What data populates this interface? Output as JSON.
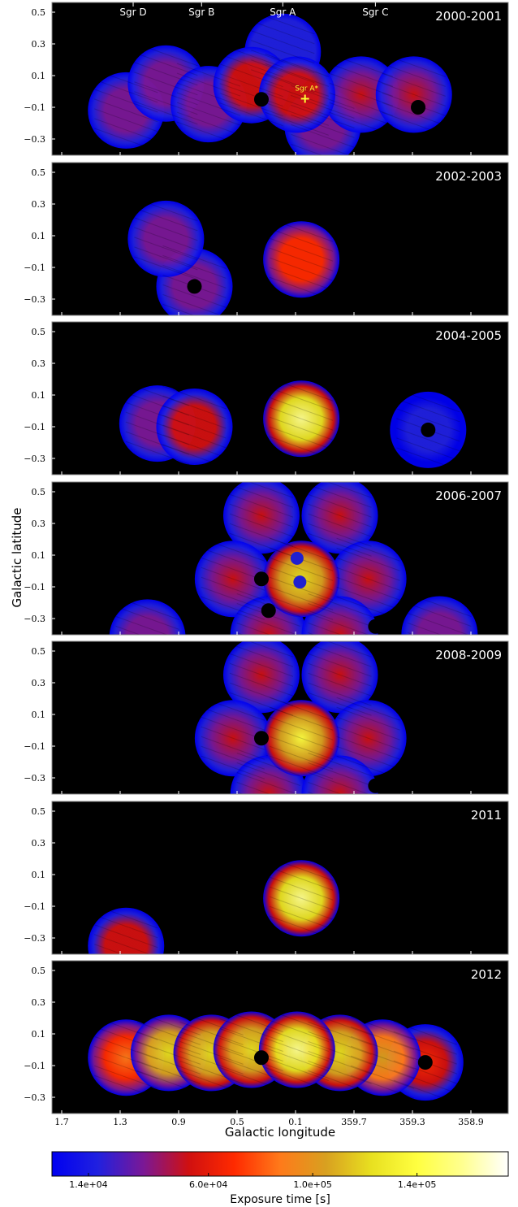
{
  "chart_data": {
    "type": "heatmap",
    "xlabel": "Galactic longitude",
    "ylabel": "Galactic latitude",
    "x_ticks": [
      "1.7",
      "1.3",
      "0.9",
      "0.5",
      "0.1",
      "359.7",
      "359.3",
      "358.9"
    ],
    "y_ticks": [
      "0.5",
      "0.3",
      "0.1",
      "−0.1",
      "−0.3"
    ],
    "xlim": [
      1.7,
      358.7
    ],
    "ylim": [
      -0.5,
      0.55
    ],
    "region_labels": [
      {
        "name": "Sgr D",
        "l": 1.15
      },
      {
        "name": "Sgr B",
        "l": 0.67
      },
      {
        "name": "Sgr A",
        "l": 0.1
      },
      {
        "name": "Sgr C",
        "l": -0.55
      }
    ],
    "source_marker": {
      "name": "Sgr A*",
      "l": -0.056,
      "b": -0.046
    },
    "panels": [
      {
        "year": "2000-2001",
        "pointings": [
          {
            "l": 0.1,
            "b": 0.25,
            "level": 0.15
          },
          {
            "l": 1.2,
            "b": -0.12,
            "level": 0.2
          },
          {
            "l": 0.92,
            "b": 0.05,
            "level": 0.2
          },
          {
            "l": 0.62,
            "b": -0.08,
            "level": 0.2
          },
          {
            "l": 0.32,
            "b": 0.04,
            "level": 0.32
          },
          {
            "l": 0.0,
            "b": -0.02,
            "level": 0.35
          },
          {
            "l": -0.18,
            "b": -0.22,
            "level": 0.25
          },
          {
            "l": -0.45,
            "b": -0.02,
            "level": 0.3
          },
          {
            "l": -0.82,
            "b": -0.02,
            "level": 0.3
          }
        ],
        "holes": [
          {
            "l": 0.25,
            "b": -0.05
          },
          {
            "l": 0.2,
            "b": -0.25
          },
          {
            "l": -0.85,
            "b": -0.1
          }
        ]
      },
      {
        "year": "2002-2003",
        "pointings": [
          {
            "l": 0.92,
            "b": 0.08,
            "level": 0.22
          },
          {
            "l": 0.72,
            "b": -0.22,
            "level": 0.2
          },
          {
            "l": -0.03,
            "b": -0.05,
            "level": 0.45
          }
        ],
        "holes": [
          {
            "l": 0.72,
            "b": -0.22
          }
        ]
      },
      {
        "year": "2004-2005",
        "pointings": [
          {
            "l": 0.98,
            "b": -0.08,
            "level": 0.22
          },
          {
            "l": 0.72,
            "b": -0.1,
            "level": 0.34
          },
          {
            "l": -0.03,
            "b": -0.05,
            "level": 0.9
          },
          {
            "l": -0.92,
            "b": -0.12,
            "level": 0.1
          }
        ],
        "holes": [
          {
            "l": -0.92,
            "b": -0.12
          }
        ]
      },
      {
        "year": "2006-2007",
        "pointings": [
          {
            "l": -0.03,
            "b": -0.05,
            "level": 0.72
          },
          {
            "l": 0.25,
            "b": 0.35,
            "level": 0.28
          },
          {
            "l": -0.3,
            "b": 0.35,
            "level": 0.28
          },
          {
            "l": 0.45,
            "b": -0.05,
            "level": 0.28
          },
          {
            "l": -0.5,
            "b": -0.05,
            "level": 0.28
          },
          {
            "l": 0.2,
            "b": -0.4,
            "level": 0.28
          },
          {
            "l": -0.3,
            "b": -0.4,
            "level": 0.28
          },
          {
            "l": 1.05,
            "b": -0.42,
            "level": 0.24
          },
          {
            "l": -1.0,
            "b": -0.4,
            "level": 0.24
          }
        ],
        "holes": [
          {
            "l": 0.25,
            "b": -0.05
          },
          {
            "l": 0.2,
            "b": -0.25
          },
          {
            "l": -0.55,
            "b": -0.35
          },
          {
            "l": 1.05,
            "b": -0.48
          }
        ],
        "blue_spots": [
          {
            "l": 0.0,
            "b": 0.08
          },
          {
            "l": -0.02,
            "b": -0.07
          }
        ]
      },
      {
        "year": "2008-2009",
        "pointings": [
          {
            "l": -0.03,
            "b": -0.05,
            "level": 0.8
          },
          {
            "l": 0.25,
            "b": 0.35,
            "level": 0.28
          },
          {
            "l": -0.3,
            "b": 0.35,
            "level": 0.28
          },
          {
            "l": 0.45,
            "b": -0.05,
            "level": 0.28
          },
          {
            "l": -0.5,
            "b": -0.05,
            "level": 0.28
          },
          {
            "l": 0.2,
            "b": -0.4,
            "level": 0.28
          },
          {
            "l": -0.3,
            "b": -0.4,
            "level": 0.28
          }
        ],
        "holes": [
          {
            "l": 0.25,
            "b": -0.05
          },
          {
            "l": -0.55,
            "b": -0.35
          }
        ]
      },
      {
        "year": "2011",
        "pointings": [
          {
            "l": -0.03,
            "b": -0.05,
            "level": 0.9
          },
          {
            "l": 1.2,
            "b": -0.35,
            "level": 0.33
          }
        ],
        "holes": []
      },
      {
        "year": "2012",
        "pointings": [
          {
            "l": 1.2,
            "b": -0.05,
            "level": 0.55
          },
          {
            "l": 0.9,
            "b": -0.02,
            "level": 0.7
          },
          {
            "l": 0.6,
            "b": -0.02,
            "level": 0.75
          },
          {
            "l": 0.32,
            "b": 0.0,
            "level": 0.75
          },
          {
            "l": 0.0,
            "b": 0.0,
            "level": 0.9
          },
          {
            "l": -0.3,
            "b": -0.02,
            "level": 0.75
          },
          {
            "l": -0.6,
            "b": -0.05,
            "level": 0.65
          },
          {
            "l": -0.9,
            "b": -0.08,
            "level": 0.4
          }
        ],
        "holes": [
          {
            "l": 0.25,
            "b": -0.05
          },
          {
            "l": -0.9,
            "b": -0.08
          }
        ]
      }
    ],
    "colorbar": {
      "label": "Exposure time [s]",
      "min": 0,
      "max": 175000,
      "ticks": [
        {
          "value": 14000,
          "label": "1.4e+04"
        },
        {
          "value": 60000,
          "label": "6.0e+04"
        },
        {
          "value": 100000,
          "label": "1.0e+05"
        },
        {
          "value": 140000,
          "label": "1.4e+05"
        }
      ],
      "stops": [
        "#0000f0",
        "#2020e0",
        "#7a1896",
        "#d01010",
        "#ff2a00",
        "#ff7a1a",
        "#d8a020",
        "#e8e020",
        "#ffff40",
        "#ffff90",
        "#ffffff"
      ]
    }
  }
}
